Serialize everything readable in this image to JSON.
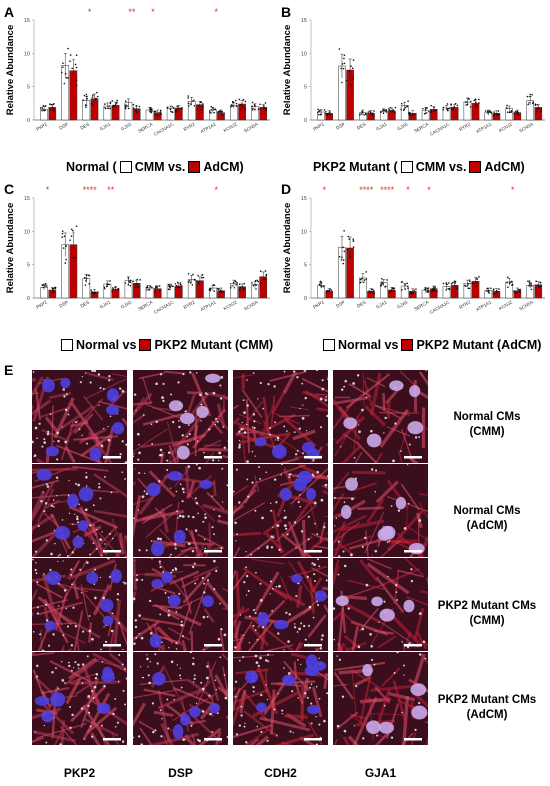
{
  "colors": {
    "normal_fill": "#ffffff",
    "adcm_fill": "#c00000",
    "cmm_fill": "#ffffff",
    "star": "#e8281e",
    "bar_edge": "#333333"
  },
  "y_label": "Relative Abundance",
  "genes": [
    "PKP2",
    "DSP",
    "DES",
    "GJA1",
    "GJA5",
    "SERCA",
    "CACNA1C",
    "RYR2",
    "ATP1A1",
    "KCNJ2",
    "SCN5A"
  ],
  "chart_data": [
    {
      "panel": "A",
      "type": "bar",
      "categories": [
        "PKP2",
        "DSP",
        "DES",
        "GJA1",
        "GJA5",
        "SERCA",
        "CACNA1C",
        "RYR2",
        "ATP1A1",
        "KCNJ2",
        "SCN5A"
      ],
      "ylim": [
        0,
        15
      ],
      "yticks": [
        0,
        5,
        10,
        15
      ],
      "ylabel": "Relative Abundance",
      "series": [
        {
          "name": "CMM",
          "values": [
            1.6,
            8.2,
            2.9,
            2.1,
            2.6,
            1.5,
            1.7,
            2.8,
            1.5,
            2.2,
            2.0
          ]
        },
        {
          "name": "AdCM",
          "values": [
            1.9,
            7.4,
            3.2,
            2.2,
            1.7,
            1.1,
            1.8,
            2.3,
            1.1,
            2.4,
            1.9
          ]
        }
      ],
      "significance": [
        "",
        "",
        "*",
        "",
        "**",
        "*",
        "",
        "",
        "*",
        "",
        ""
      ],
      "legend": {
        "prefix": "Normal (",
        "a": "CMM vs. ",
        "b": "AdCM)"
      }
    },
    {
      "panel": "B",
      "type": "bar",
      "categories": [
        "PKP2",
        "DSP",
        "DES",
        "GJA1",
        "GJA5",
        "SERCA",
        "CACNA1C",
        "RYR2",
        "ATP1A1",
        "KCNJ2",
        "SCN5A"
      ],
      "ylim": [
        0,
        15
      ],
      "yticks": [
        0,
        5,
        10,
        15
      ],
      "ylabel": "Relative Abundance",
      "series": [
        {
          "name": "CMM",
          "values": [
            1.2,
            8.1,
            1.1,
            1.3,
            2.2,
            1.4,
            1.8,
            2.7,
            1.1,
            1.7,
            2.9
          ]
        },
        {
          "name": "AdCM",
          "values": [
            1.0,
            7.5,
            1.0,
            1.4,
            1.0,
            1.6,
            1.9,
            2.5,
            1.0,
            1.1,
            1.9
          ]
        }
      ],
      "significance": [
        "",
        "",
        "",
        "",
        "",
        "",
        "",
        "",
        "",
        "",
        ""
      ],
      "legend": {
        "prefix": "PKP2 Mutant (",
        "a": "CMM vs. ",
        "b": "AdCM)"
      }
    },
    {
      "panel": "C",
      "type": "bar",
      "categories": [
        "PKP2",
        "DSP",
        "DES",
        "GJA1",
        "GJA5",
        "SERCA",
        "CACNA1C",
        "RYR2",
        "ATP1A1",
        "KCNJ2",
        "SCN5A"
      ],
      "ylim": [
        0,
        15
      ],
      "yticks": [
        0,
        5,
        10,
        15
      ],
      "ylabel": "Relative Abundance",
      "series": [
        {
          "name": "Normal",
          "values": [
            1.6,
            8.0,
            2.9,
            2.1,
            2.6,
            1.5,
            1.7,
            2.8,
            1.5,
            2.2,
            2.0
          ]
        },
        {
          "name": "PKP2 Mutant",
          "values": [
            1.2,
            8.0,
            0.9,
            1.3,
            2.2,
            1.4,
            1.8,
            2.6,
            1.1,
            1.7,
            3.2
          ]
        }
      ],
      "significance": [
        "*",
        "",
        "****",
        "**",
        "",
        "",
        "",
        "",
        "*",
        "",
        ""
      ],
      "legend": {
        "prefix": "",
        "a": "Normal vs ",
        "b": "PKP2 Mutant  (CMM)"
      }
    },
    {
      "panel": "D",
      "type": "bar",
      "categories": [
        "PKP2",
        "DSP",
        "DES",
        "GJA1",
        "GJA5",
        "SERCA",
        "CACNA1C",
        "RYR2",
        "ATP1A1",
        "KCNJ2",
        "SCN5A"
      ],
      "ylim": [
        0,
        15
      ],
      "yticks": [
        0,
        5,
        10,
        15
      ],
      "ylabel": "Relative Abundance",
      "series": [
        {
          "name": "Normal",
          "values": [
            1.9,
            7.6,
            3.0,
            2.3,
            1.8,
            1.2,
            1.7,
            2.2,
            1.1,
            2.4,
            1.9
          ]
        },
        {
          "name": "PKP2 Mutant",
          "values": [
            1.0,
            7.5,
            1.0,
            1.2,
            1.0,
            1.4,
            1.9,
            2.5,
            1.0,
            1.1,
            2.0
          ]
        }
      ],
      "significance": [
        "*",
        "",
        "****",
        "****",
        "*",
        "*",
        "",
        "",
        "",
        "*",
        ""
      ],
      "legend": {
        "prefix": "",
        "a": "Normal vs ",
        "b": "PKP2 Mutant  (AdCM)"
      }
    }
  ],
  "panel_e": {
    "letter": "E",
    "columns": [
      "PKP2",
      "DSP",
      "CDH2",
      "GJA1"
    ],
    "rows": [
      {
        "line1": "Normal CMs",
        "line2": "(CMM)"
      },
      {
        "line1": "Normal CMs",
        "line2": "(AdCM)"
      },
      {
        "line1": "PKP2 Mutant CMs",
        "line2": "(CMM)"
      },
      {
        "line1": "PKP2 Mutant CMs",
        "line2": "(AdCM)"
      }
    ]
  }
}
